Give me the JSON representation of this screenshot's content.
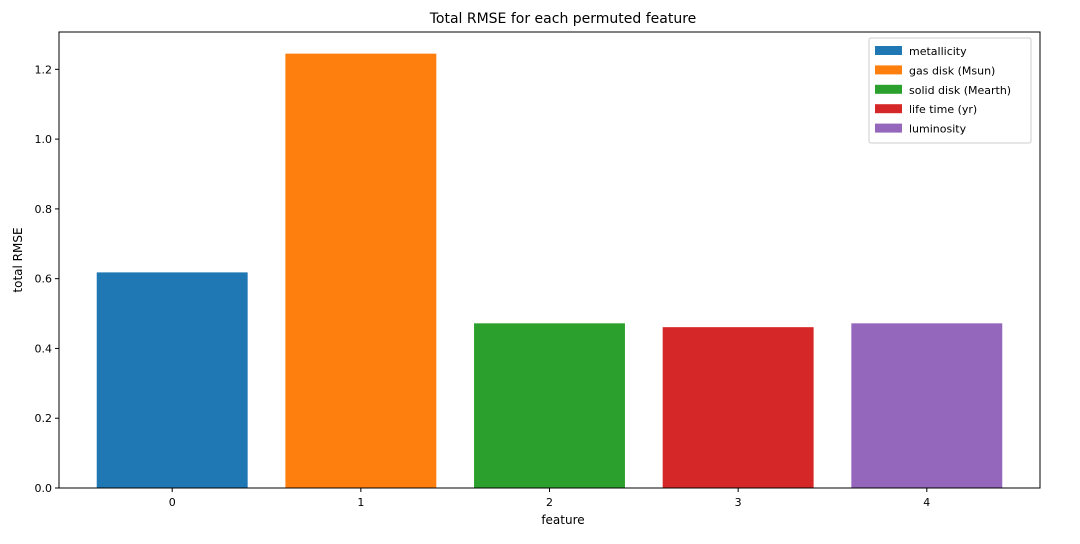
{
  "chart_data": {
    "type": "bar",
    "title": "Total RMSE for each permuted feature",
    "xlabel": "feature",
    "ylabel": "total RMSE",
    "categories": [
      "0",
      "1",
      "2",
      "3",
      "4"
    ],
    "values": [
      0.618,
      1.245,
      0.472,
      0.461,
      0.472
    ],
    "series_names": [
      "metallicity",
      "gas disk (Msun)",
      "solid disk (Mearth)",
      "life time (yr)",
      "luminosity"
    ],
    "colors": [
      "#1f77b4",
      "#ff7f0e",
      "#2ca02c",
      "#d62728",
      "#9467bd"
    ],
    "ylim": [
      0,
      1.307
    ],
    "yticks": [
      "0.0",
      "0.2",
      "0.4",
      "0.6",
      "0.8",
      "1.0",
      "1.2"
    ],
    "grid": false,
    "legend_position": "top-right"
  }
}
